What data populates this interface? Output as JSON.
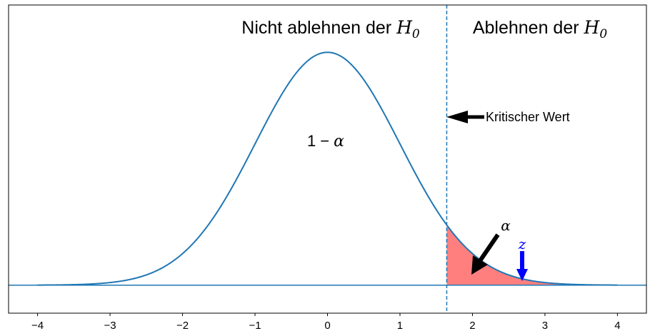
{
  "chart_data": {
    "type": "line",
    "title": "",
    "xlabel": "",
    "ylabel": "",
    "xlim": [
      -4.4,
      4.4
    ],
    "ylim": [
      -0.048,
      0.48
    ],
    "x_ticks": [
      -4,
      -3,
      -2,
      -1,
      0,
      1,
      2,
      3,
      4
    ],
    "x_tick_labels": [
      "−4",
      "−3",
      "−2",
      "−1",
      "0",
      "1",
      "2",
      "3",
      "4"
    ],
    "y_ticks": [],
    "grid": false,
    "series": [
      {
        "x_range": [
          -4,
          4
        ],
        "function": "standard normal pdf",
        "mean": 0,
        "std": 1,
        "color": "#1f77b4"
      }
    ],
    "critical_value": 1.645,
    "critical_line_color": "#1f77b4",
    "rejection_region": {
      "from": 1.645,
      "to": 4,
      "fill": "#ff7f7f"
    },
    "baseline_y": 0,
    "test_statistic": {
      "x": 2.7,
      "color": "#0000ff"
    },
    "region_labels": {
      "left": {
        "prefix": "Nicht ablehnen der ",
        "symbol": "H",
        "subscript": "0"
      },
      "right": {
        "prefix": "Ablehnen der ",
        "symbol": "H",
        "subscript": "0"
      }
    },
    "annotations": {
      "critical": {
        "text": "Kritischer Wert",
        "points_to_x": 1.645,
        "points_to_y": 0.31
      },
      "alpha": {
        "text": "α",
        "points_to_x": 2.0,
        "points_to_y": 0.02
      },
      "one_minus_alpha": {
        "lead": "1",
        "op": "−",
        "symbol": "α"
      },
      "z": {
        "text": "z"
      }
    }
  }
}
